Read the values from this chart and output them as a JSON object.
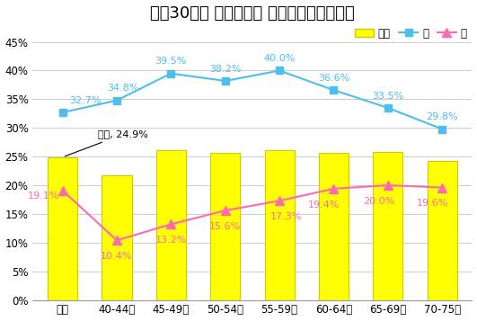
{
  "title": "平成30年度 性別年代別 脂質有所見者の割合",
  "categories": [
    "全体",
    "40-44歳",
    "45-49歳",
    "50-54歳",
    "55-59歳",
    "60-64歳",
    "65-69歳",
    "70-75歳"
  ],
  "bar_values": [
    24.9,
    21.8,
    26.1,
    25.6,
    26.1,
    25.7,
    25.8,
    24.3
  ],
  "male_values": [
    32.7,
    34.8,
    39.5,
    38.2,
    40.0,
    36.6,
    33.5,
    29.8
  ],
  "female_values": [
    19.1,
    10.4,
    13.2,
    15.6,
    17.3,
    19.4,
    20.0,
    19.6
  ],
  "bar_color": "#FFFF00",
  "bar_edge_color": "#CCCC00",
  "male_color": "#4DBEEE",
  "female_color": "#FF69B4",
  "male_marker": "s",
  "female_marker": "^",
  "ylim_max": 47.5,
  "yticks": [
    0,
    5,
    10,
    15,
    20,
    25,
    30,
    35,
    40,
    45
  ],
  "ytick_labels": [
    "0%",
    "5%",
    "10%",
    "15%",
    "20%",
    "25%",
    "30%",
    "35%",
    "40%",
    "45%"
  ],
  "legend_labels": [
    "全体",
    "男",
    "女"
  ],
  "annotation_label": "全体, 24.9%",
  "background_color": "#FFFFFF",
  "grid_color": "#CCCCCC",
  "title_fontsize": 13,
  "label_fontsize": 8,
  "tick_fontsize": 8.5
}
